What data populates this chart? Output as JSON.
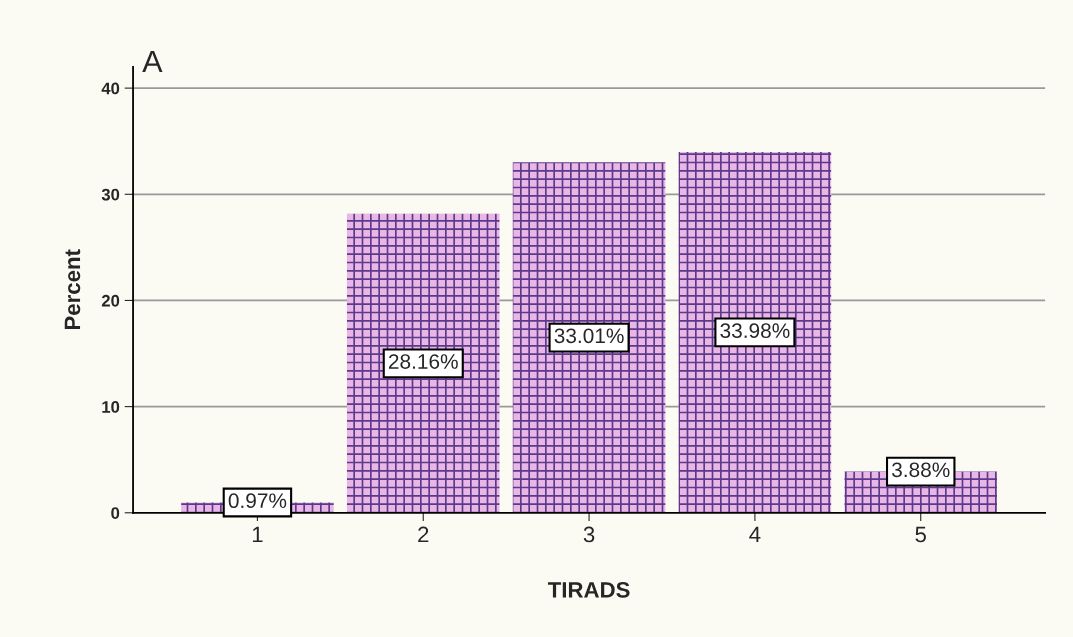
{
  "chart_data": {
    "type": "bar",
    "title": "A",
    "xlabel": "TIRADS",
    "ylabel": "Percent",
    "categories": [
      "1",
      "2",
      "3",
      "4",
      "5"
    ],
    "values": [
      0.97,
      28.16,
      33.01,
      33.98,
      3.88
    ],
    "value_labels": [
      "0.97%",
      "28.16%",
      "33.01%",
      "33.98%",
      "3.88%"
    ],
    "color": "#eab6e6",
    "ylim": [
      0,
      42
    ],
    "yticks": [
      0,
      10,
      20,
      30,
      40
    ],
    "grid": "y"
  }
}
